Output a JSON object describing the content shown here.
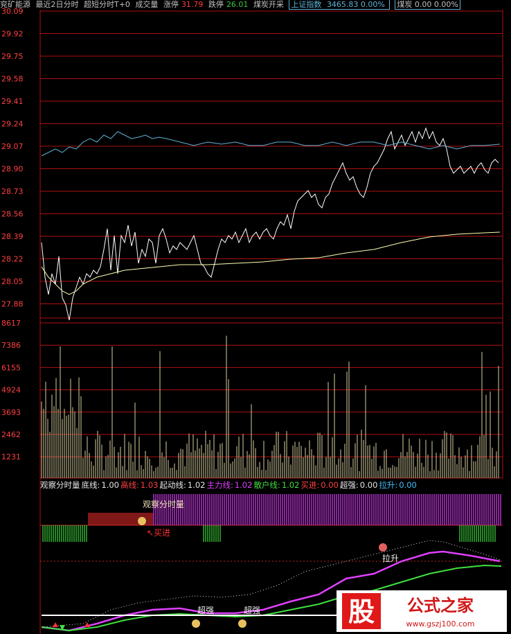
{
  "header": {
    "stock_name": "兖矿能源",
    "period": "最近2日分时",
    "indicator": "超短分时T+0",
    "volume_label": "成交量",
    "limit_up_label": "涨停",
    "limit_up_value": "31.79",
    "limit_down_label": "跌停",
    "limit_down_value": "26.01",
    "sector": "煤炭开采",
    "index_name": "上证指数",
    "index_value": "3465.83 0.00%",
    "sector_box": "煤炭 0.00 0.00%"
  },
  "price_axis": [
    "30.09",
    "29.92",
    "29.75",
    "29.58",
    "29.41",
    "29.24",
    "29.07",
    "28.90",
    "28.73",
    "28.56",
    "28.39",
    "28.22",
    "28.05",
    "27.88"
  ],
  "volume_axis": [
    "8617",
    "7386",
    "6155",
    "4924",
    "3693",
    "2462",
    "1231"
  ],
  "indicator_header": [
    {
      "text": "观察分时量",
      "color": "white"
    },
    {
      "text": "底线:",
      "color": "white"
    },
    {
      "text": "1.00",
      "color": "white"
    },
    {
      "text": "高线:",
      "color": "red"
    },
    {
      "text": "1.03",
      "color": "red"
    },
    {
      "text": "起动线:",
      "color": "white"
    },
    {
      "text": "1.02",
      "color": "white"
    },
    {
      "text": "主力线:",
      "color": "mag"
    },
    {
      "text": "1.02",
      "color": "mag"
    },
    {
      "text": "散户线:",
      "color": "green"
    },
    {
      "text": "1.02",
      "color": "green"
    },
    {
      "text": "买进:",
      "color": "red"
    },
    {
      "text": "0.00",
      "color": "red"
    },
    {
      "text": "超强:",
      "color": "white"
    },
    {
      "text": "0.00",
      "color": "white"
    },
    {
      "text": "拉升:",
      "color": "cyan"
    },
    {
      "text": "0.00",
      "color": "cyan"
    }
  ],
  "annotations": {
    "observe": "观察分时量",
    "buy": "买进",
    "pull_up": "拉升",
    "strong1": "超强",
    "strong2": "超强"
  },
  "watermark": {
    "char": "股",
    "text": "公式之家",
    "url": "www.gszj100.com"
  },
  "colors": {
    "grid": "#b01010",
    "price_line": "#ffffff",
    "avg_line": "#ffffb0",
    "index_line": "#5fb3d9",
    "volume_bar": "#d8d0a0",
    "magenta": "#e040ff",
    "green": "#40e040",
    "red": "#ff3030"
  }
}
